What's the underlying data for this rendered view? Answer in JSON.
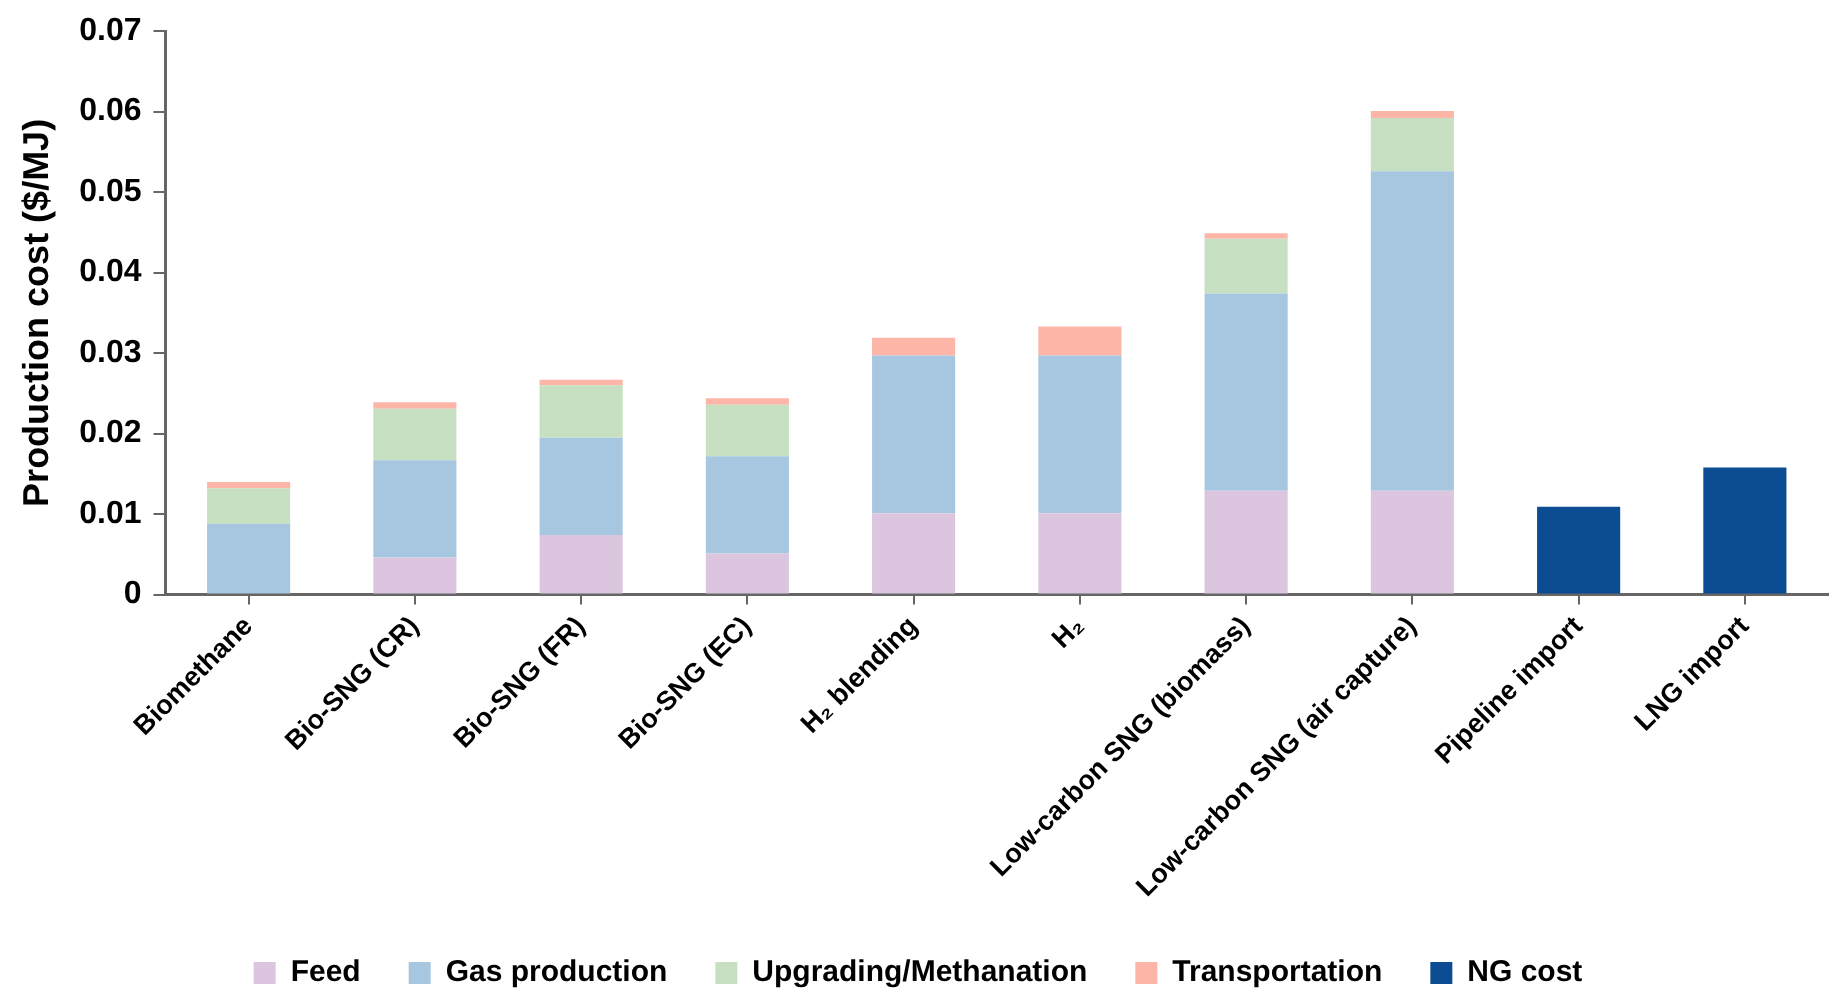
{
  "chart_data": {
    "type": "bar",
    "stacked": true,
    "ylabel": "Production cost ($/MJ)",
    "categories": [
      "Biomethane",
      "Bio-SNG (CR)",
      "Bio-SNG (FR)",
      "Bio-SNG (EC)",
      "H₂ blending",
      "H₂",
      "Low-carbon SNG (biomass)",
      "Low-carbon SNG (air capture)",
      "Pipeline import",
      "LNG import"
    ],
    "series": [
      {
        "name": "Feed",
        "color": "#dcc6df",
        "values": [
          0,
          0.0046,
          0.0074,
          0.0051,
          0.0101,
          0.0101,
          0.0129,
          0.0129,
          null,
          null
        ]
      },
      {
        "name": "Gas production",
        "color": "#a7c7e1",
        "values": [
          0.0088,
          0.0121,
          0.0121,
          0.0121,
          0.0196,
          0.0196,
          0.0245,
          0.0397,
          null,
          null
        ]
      },
      {
        "name": "Upgrading/Methanation",
        "color": "#c8e0c2",
        "values": [
          0.0044,
          0.0064,
          0.0065,
          0.0064,
          0,
          0,
          0.0068,
          0.0066,
          null,
          null
        ]
      },
      {
        "name": "Transportation",
        "color": "#fdb5a8",
        "values": [
          0.0008,
          0.0008,
          0.0007,
          0.0008,
          0.0022,
          0.0036,
          0.0007,
          0.0009,
          null,
          null
        ]
      },
      {
        "name": "NG cost",
        "color": "#0c4c92",
        "values": [
          null,
          null,
          null,
          null,
          null,
          null,
          null,
          null,
          0.0109,
          0.0158
        ]
      }
    ],
    "ylim": [
      0,
      0.07
    ],
    "yticks": [
      0,
      0.01,
      0.02,
      0.03,
      0.04,
      0.05,
      0.06,
      0.07
    ],
    "grid": false,
    "legend": "bottom"
  }
}
